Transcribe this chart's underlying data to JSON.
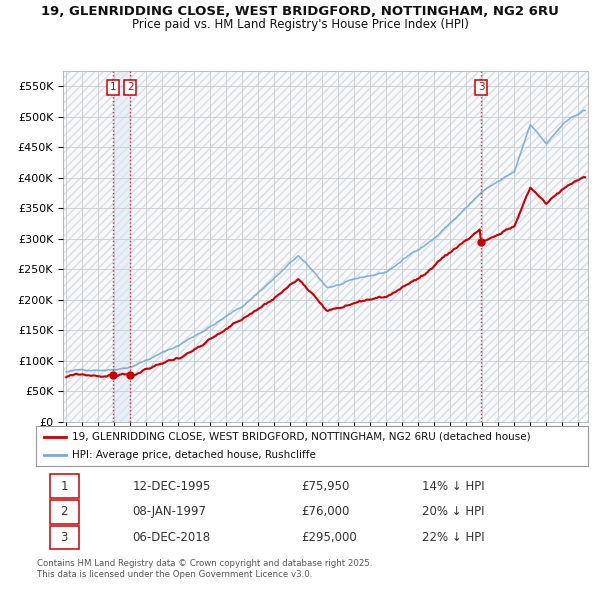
{
  "title": "19, GLENRIDDING CLOSE, WEST BRIDGFORD, NOTTINGHAM, NG2 6RU",
  "subtitle": "Price paid vs. HM Land Registry's House Price Index (HPI)",
  "background_color": "#ffffff",
  "grid_color": "#cccccc",
  "sale_date_strs": [
    "12-DEC-1995",
    "08-JAN-1997",
    "06-DEC-2018"
  ],
  "sale_prices": [
    75950,
    76000,
    295000
  ],
  "sale_labels": [
    "1",
    "2",
    "3"
  ],
  "vline_color": "#cc3333",
  "vline_style": ":",
  "price_line_color": "#cc0000",
  "hpi_line_color": "#7aaad4",
  "shade_color": "#dce8f5",
  "ylim": [
    0,
    575000
  ],
  "yticks": [
    0,
    50000,
    100000,
    150000,
    200000,
    250000,
    300000,
    350000,
    400000,
    450000,
    500000,
    550000
  ],
  "ytick_labels": [
    "£0",
    "£50K",
    "£100K",
    "£150K",
    "£200K",
    "£250K",
    "£300K",
    "£350K",
    "£400K",
    "£450K",
    "£500K",
    "£550K"
  ],
  "legend_price_label": "19, GLENRIDDING CLOSE, WEST BRIDGFORD, NOTTINGHAM, NG2 6RU (detached house)",
  "legend_hpi_label": "HPI: Average price, detached house, Rushcliffe",
  "table_rows": [
    [
      "1",
      "12-DEC-1995",
      "£75,950",
      "14% ↓ HPI"
    ],
    [
      "2",
      "08-JAN-1997",
      "£76,000",
      "20% ↓ HPI"
    ],
    [
      "3",
      "06-DEC-2018",
      "£295,000",
      "22% ↓ HPI"
    ]
  ],
  "footer": "Contains HM Land Registry data © Crown copyright and database right 2025.\nThis data is licensed under the Open Government Licence v3.0.",
  "hpi_seed": 42,
  "price_seed": 99
}
